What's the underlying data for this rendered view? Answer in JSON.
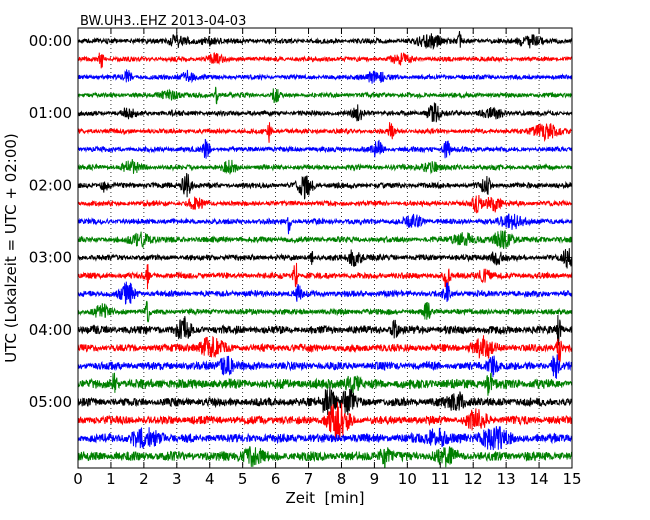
{
  "chart_data": {
    "type": "line",
    "title": "BW.UH3..EHZ 2013-04-03",
    "xlabel": "Zeit  [min]",
    "ylabel": "UTC (Lokalzeit = UTC + 02:00)",
    "xlim": [
      0,
      15
    ],
    "x_ticks": [
      0,
      1,
      2,
      3,
      4,
      5,
      6,
      7,
      8,
      9,
      10,
      11,
      12,
      13,
      14,
      15
    ],
    "x_tick_labels": [
      "0",
      "1",
      "2",
      "3",
      "4",
      "5",
      "6",
      "7",
      "8",
      "9",
      "10",
      "11",
      "12",
      "13",
      "14",
      "15"
    ],
    "vertical_grid": "dotted, every 1 min",
    "y_tick_labels": [
      "00:00",
      "01:00",
      "02:00",
      "03:00",
      "04:00",
      "05:00"
    ],
    "trace_interval_min": 15,
    "trace_colors": [
      "#000000",
      "#ff0000",
      "#0000ff",
      "#008000"
    ],
    "traces": [
      {
        "start": "00:00",
        "color": "#000000",
        "amp": 2.6,
        "events": [
          {
            "t": 3.0,
            "a": 5,
            "w": 0.3
          },
          {
            "t": 4.0,
            "a": 4,
            "w": 0.25
          },
          {
            "t": 10.7,
            "a": 7,
            "w": 0.35
          },
          {
            "t": 11.6,
            "a": 10,
            "w": 0.05
          },
          {
            "t": 13.7,
            "a": 6,
            "w": 0.3
          }
        ]
      },
      {
        "start": "00:15",
        "color": "#ff0000",
        "amp": 2.4,
        "events": [
          {
            "t": 0.7,
            "a": 10,
            "w": 0.06
          },
          {
            "t": 4.2,
            "a": 4,
            "w": 0.25
          },
          {
            "t": 9.8,
            "a": 4,
            "w": 0.3
          }
        ]
      },
      {
        "start": "00:30",
        "color": "#0000ff",
        "amp": 2.4,
        "events": [
          {
            "t": 1.5,
            "a": 8,
            "w": 0.1
          },
          {
            "t": 3.3,
            "a": 6,
            "w": 0.2
          },
          {
            "t": 9.0,
            "a": 5,
            "w": 0.35
          }
        ]
      },
      {
        "start": "00:45",
        "color": "#008000",
        "amp": 2.4,
        "events": [
          {
            "t": 2.8,
            "a": 4,
            "w": 0.3
          },
          {
            "t": 4.2,
            "a": 10,
            "w": 0.05
          },
          {
            "t": 6.0,
            "a": 8,
            "w": 0.1
          }
        ]
      },
      {
        "start": "01:00",
        "color": "#000000",
        "amp": 2.6,
        "events": [
          {
            "t": 1.5,
            "a": 5,
            "w": 0.2
          },
          {
            "t": 8.5,
            "a": 8,
            "w": 0.15
          },
          {
            "t": 10.8,
            "a": 9,
            "w": 0.2
          },
          {
            "t": 12.6,
            "a": 5,
            "w": 0.3
          }
        ]
      },
      {
        "start": "01:15",
        "color": "#ff0000",
        "amp": 2.4,
        "events": [
          {
            "t": 5.8,
            "a": 10,
            "w": 0.06
          },
          {
            "t": 9.5,
            "a": 9,
            "w": 0.08
          },
          {
            "t": 14.2,
            "a": 8,
            "w": 0.35
          }
        ]
      },
      {
        "start": "01:30",
        "color": "#0000ff",
        "amp": 2.6,
        "events": [
          {
            "t": 3.9,
            "a": 9,
            "w": 0.1
          },
          {
            "t": 9.1,
            "a": 8,
            "w": 0.15
          },
          {
            "t": 11.2,
            "a": 10,
            "w": 0.1
          }
        ]
      },
      {
        "start": "01:45",
        "color": "#008000",
        "amp": 2.6,
        "events": [
          {
            "t": 1.6,
            "a": 6,
            "w": 0.25
          },
          {
            "t": 4.6,
            "a": 6,
            "w": 0.2
          },
          {
            "t": 10.7,
            "a": 5,
            "w": 0.25
          }
        ]
      },
      {
        "start": "02:00",
        "color": "#000000",
        "amp": 2.8,
        "events": [
          {
            "t": 0.8,
            "a": 8,
            "w": 0.08
          },
          {
            "t": 3.3,
            "a": 11,
            "w": 0.15
          },
          {
            "t": 6.9,
            "a": 12,
            "w": 0.2
          },
          {
            "t": 12.4,
            "a": 8,
            "w": 0.15
          }
        ]
      },
      {
        "start": "02:15",
        "color": "#ff0000",
        "amp": 2.6,
        "events": [
          {
            "t": 3.6,
            "a": 5,
            "w": 0.25
          },
          {
            "t": 12.1,
            "a": 9,
            "w": 0.15
          },
          {
            "t": 12.6,
            "a": 8,
            "w": 0.2
          }
        ]
      },
      {
        "start": "02:30",
        "color": "#0000ff",
        "amp": 2.8,
        "events": [
          {
            "t": 6.4,
            "a": 12,
            "w": 0.05
          },
          {
            "t": 10.2,
            "a": 5,
            "w": 0.3
          },
          {
            "t": 13.2,
            "a": 7,
            "w": 0.35
          }
        ]
      },
      {
        "start": "02:45",
        "color": "#008000",
        "amp": 3.0,
        "events": [
          {
            "t": 1.9,
            "a": 6,
            "w": 0.3
          },
          {
            "t": 11.7,
            "a": 6,
            "w": 0.3
          },
          {
            "t": 12.9,
            "a": 8,
            "w": 0.3
          }
        ]
      },
      {
        "start": "03:00",
        "color": "#000000",
        "amp": 3.0,
        "events": [
          {
            "t": 7.1,
            "a": 10,
            "w": 0.05
          },
          {
            "t": 8.4,
            "a": 8,
            "w": 0.2
          },
          {
            "t": 12.7,
            "a": 6,
            "w": 0.2
          },
          {
            "t": 14.9,
            "a": 12,
            "w": 0.15
          }
        ]
      },
      {
        "start": "03:15",
        "color": "#ff0000",
        "amp": 3.0,
        "events": [
          {
            "t": 2.1,
            "a": 14,
            "w": 0.05
          },
          {
            "t": 6.6,
            "a": 16,
            "w": 0.06
          },
          {
            "t": 11.2,
            "a": 14,
            "w": 0.08
          },
          {
            "t": 12.3,
            "a": 6,
            "w": 0.2
          }
        ]
      },
      {
        "start": "03:30",
        "color": "#0000ff",
        "amp": 3.2,
        "events": [
          {
            "t": 1.5,
            "a": 10,
            "w": 0.2
          },
          {
            "t": 6.7,
            "a": 7,
            "w": 0.1
          },
          {
            "t": 11.2,
            "a": 9,
            "w": 0.1
          }
        ]
      },
      {
        "start": "03:45",
        "color": "#008000",
        "amp": 3.0,
        "events": [
          {
            "t": 0.7,
            "a": 7,
            "w": 0.2
          },
          {
            "t": 2.1,
            "a": 14,
            "w": 0.05
          },
          {
            "t": 10.6,
            "a": 8,
            "w": 0.1
          }
        ]
      },
      {
        "start": "04:00",
        "color": "#000000",
        "amp": 4.2,
        "events": [
          {
            "t": 3.2,
            "a": 10,
            "w": 0.2
          },
          {
            "t": 9.6,
            "a": 9,
            "w": 0.1
          },
          {
            "t": 14.6,
            "a": 14,
            "w": 0.06
          }
        ]
      },
      {
        "start": "04:15",
        "color": "#ff0000",
        "amp": 4.0,
        "events": [
          {
            "t": 4.0,
            "a": 8,
            "w": 0.4
          },
          {
            "t": 12.3,
            "a": 9,
            "w": 0.3
          },
          {
            "t": 14.6,
            "a": 16,
            "w": 0.06
          }
        ]
      },
      {
        "start": "04:30",
        "color": "#0000ff",
        "amp": 4.2,
        "events": [
          {
            "t": 4.5,
            "a": 9,
            "w": 0.2
          },
          {
            "t": 12.6,
            "a": 9,
            "w": 0.15
          },
          {
            "t": 14.5,
            "a": 14,
            "w": 0.1
          }
        ]
      },
      {
        "start": "04:45",
        "color": "#008000",
        "amp": 5.0,
        "events": [
          {
            "t": 1.1,
            "a": 10,
            "w": 0.1
          },
          {
            "t": 8.3,
            "a": 7,
            "w": 0.25
          },
          {
            "t": 12.5,
            "a": 11,
            "w": 0.1
          }
        ]
      },
      {
        "start": "05:00",
        "color": "#000000",
        "amp": 4.4,
        "events": [
          {
            "t": 7.6,
            "a": 14,
            "w": 0.2
          },
          {
            "t": 8.2,
            "a": 11,
            "w": 0.2
          },
          {
            "t": 11.5,
            "a": 8,
            "w": 0.3
          }
        ]
      },
      {
        "start": "05:15",
        "color": "#ff0000",
        "amp": 4.4,
        "events": [
          {
            "t": 7.9,
            "a": 16,
            "w": 0.3
          },
          {
            "t": 12.1,
            "a": 8,
            "w": 0.3
          }
        ]
      },
      {
        "start": "05:30",
        "color": "#0000ff",
        "amp": 4.6,
        "events": [
          {
            "t": 2.0,
            "a": 7,
            "w": 0.5
          },
          {
            "t": 10.9,
            "a": 8,
            "w": 0.3
          },
          {
            "t": 12.6,
            "a": 10,
            "w": 0.4
          }
        ]
      },
      {
        "start": "05:45",
        "color": "#008000",
        "amp": 4.8,
        "events": [
          {
            "t": 5.3,
            "a": 8,
            "w": 0.3
          },
          {
            "t": 9.3,
            "a": 9,
            "w": 0.15
          },
          {
            "t": 11.2,
            "a": 7,
            "w": 0.3
          }
        ]
      }
    ]
  }
}
